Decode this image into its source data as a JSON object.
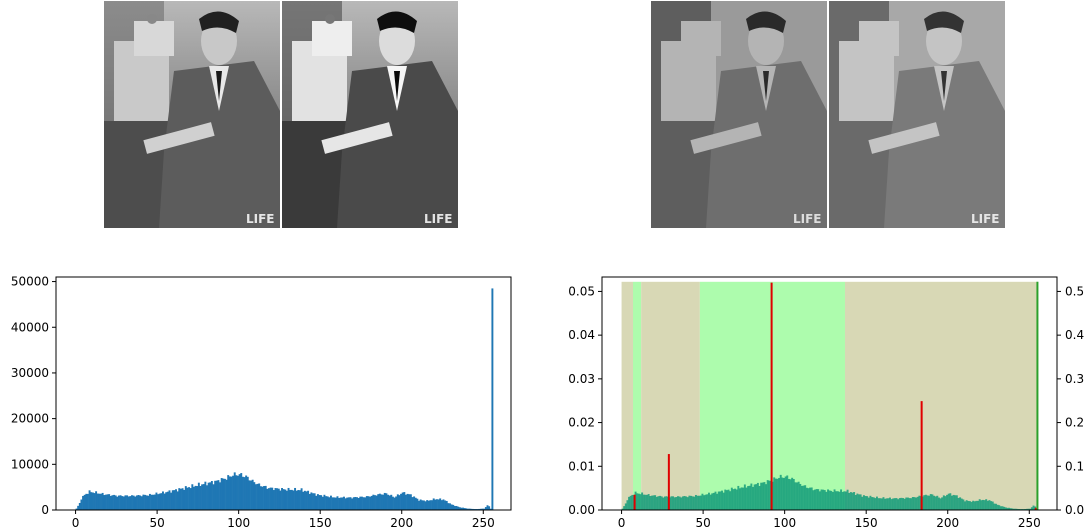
{
  "images": [
    {
      "name": "original-grayscale-photo",
      "tone": "continuous"
    },
    {
      "name": "equalized-grayscale-photo",
      "tone": "continuous"
    },
    {
      "name": "quantized-photo-left",
      "tone": "posterized"
    },
    {
      "name": "quantized-photo-right",
      "tone": "posterized"
    }
  ],
  "photo_watermark": "LIFE",
  "colors": {
    "hist_bar": "#1f77b4",
    "band_tan": "#d8d8b5",
    "band_green": "#adfcad",
    "right_hist": "#159e7a",
    "threshold_line": "#e00000",
    "last_line": "#2ca02c"
  },
  "chart_data": [
    {
      "type": "bar",
      "title": "",
      "xlabel": "",
      "ylabel": "",
      "xlim": [
        -12,
        267
      ],
      "ylim": [
        0,
        51000
      ],
      "xticks": [
        0,
        50,
        100,
        150,
        200,
        250
      ],
      "yticks": [
        0,
        10000,
        20000,
        30000,
        40000,
        50000
      ],
      "curve_anchors_x": [
        0,
        1,
        2,
        3,
        5,
        8,
        12,
        16,
        25,
        35,
        45,
        55,
        65,
        75,
        85,
        92,
        96,
        100,
        104,
        108,
        112,
        118,
        128,
        138,
        148,
        158,
        168,
        178,
        185,
        190,
        195,
        200,
        205,
        210,
        215,
        220,
        225,
        230,
        235,
        240,
        245,
        250,
        252,
        253,
        254
      ],
      "curve_anchors_y": [
        300,
        900,
        1500,
        2500,
        3300,
        4000,
        3800,
        3500,
        3100,
        3100,
        3300,
        3900,
        4700,
        5500,
        6200,
        7000,
        7700,
        7800,
        7300,
        6300,
        5500,
        4800,
        4500,
        4400,
        3300,
        2800,
        2700,
        2900,
        3400,
        3600,
        2800,
        3800,
        3300,
        2200,
        2000,
        2400,
        2300,
        1200,
        600,
        300,
        200,
        300,
        1000,
        800,
        300
      ],
      "spike": {
        "x": 255,
        "value": 48500
      }
    },
    {
      "type": "bar",
      "title": "",
      "xlabel": "",
      "ylabel": "",
      "xlim": [
        -12,
        267
      ],
      "ylim": [
        0,
        0.0533
      ],
      "xticks": [
        0,
        50,
        100,
        150,
        200,
        250
      ],
      "yticks": [
        0.0,
        0.01,
        0.02,
        0.03,
        0.04,
        0.05
      ],
      "y2lim": [
        0,
        0.533
      ],
      "y2ticks": [
        0.0,
        0.1,
        0.2,
        0.3,
        0.4,
        0.5
      ],
      "band_height": 0.0522,
      "bands": [
        {
          "from": 0,
          "to": 7,
          "color": "tan"
        },
        {
          "from": 7,
          "to": 12,
          "color": "green"
        },
        {
          "from": 12,
          "to": 48,
          "color": "tan"
        },
        {
          "from": 48,
          "to": 137,
          "color": "green"
        },
        {
          "from": 137,
          "to": 255,
          "color": "tan"
        }
      ],
      "lines": [
        {
          "x": 8,
          "value": 0.0035,
          "color": "red"
        },
        {
          "x": 29,
          "value": 0.0128,
          "color": "red"
        },
        {
          "x": 92,
          "value": 0.052,
          "color": "red"
        },
        {
          "x": 184,
          "value": 0.0249,
          "color": "red"
        },
        {
          "x": 254,
          "value": 0.0005,
          "color": "red"
        },
        {
          "x": 255,
          "value": 0.0522,
          "color": "green"
        }
      ],
      "density_total": 1024000
    }
  ]
}
